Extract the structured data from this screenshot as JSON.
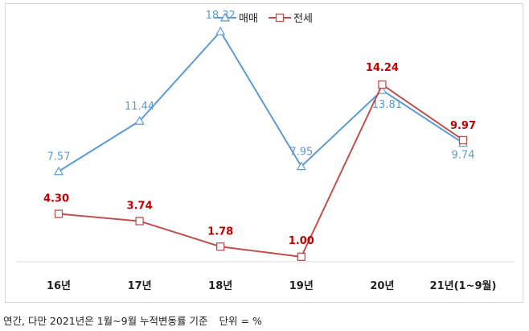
{
  "chart_data": {
    "type": "line",
    "categories": [
      "16년",
      "17년",
      "18년",
      "19년",
      "20년",
      "21년(1~9월)"
    ],
    "series": [
      {
        "name": "매매",
        "values": [
          7.57,
          11.44,
          18.32,
          7.95,
          13.81,
          9.74
        ],
        "color": "#5b9bd5",
        "marker": "triangle"
      },
      {
        "name": "전세",
        "values": [
          4.3,
          3.74,
          1.78,
          1.0,
          14.24,
          9.97
        ],
        "color": "#c0504d",
        "label_color": "#c00000",
        "marker": "square"
      }
    ],
    "ylim": [
      0,
      20
    ],
    "grid": false,
    "legend_position": "top-center"
  },
  "footnote": {
    "text": "연간, 다만 2021년은 1월~9월 누적변동률 기준",
    "unit": "단위 = %"
  }
}
